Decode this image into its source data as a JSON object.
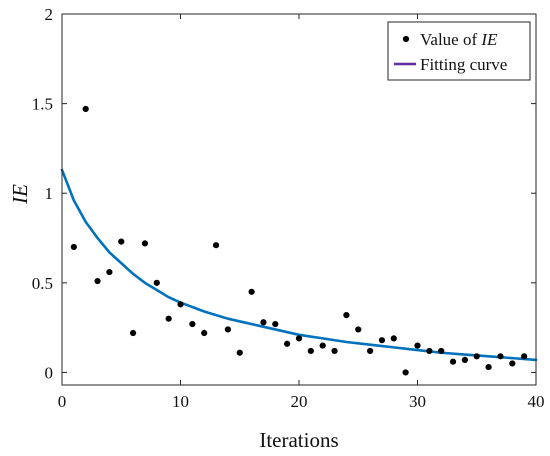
{
  "chart_data": {
    "type": "scatter",
    "xlabel": "Iterations",
    "ylabel": "IE",
    "xlim": [
      0,
      40
    ],
    "ylim": [
      -0.07,
      2
    ],
    "xticks": [
      0,
      10,
      20,
      30,
      40
    ],
    "yticks": [
      0,
      0.5,
      1,
      1.5,
      2
    ],
    "grid": false,
    "legend_position": "top-right",
    "series": [
      {
        "name": "Value of IE",
        "type": "scatter",
        "color": "#000000",
        "x": [
          1,
          2,
          3,
          4,
          5,
          6,
          7,
          8,
          9,
          10,
          11,
          12,
          13,
          14,
          15,
          16,
          17,
          18,
          19,
          20,
          21,
          22,
          23,
          24,
          25,
          26,
          27,
          28,
          29,
          30,
          31,
          32,
          33,
          34,
          35,
          36,
          37,
          38,
          39
        ],
        "y": [
          0.7,
          1.47,
          0.51,
          0.56,
          0.73,
          0.22,
          0.72,
          0.5,
          0.3,
          0.38,
          0.27,
          0.22,
          0.71,
          0.24,
          0.11,
          0.45,
          0.28,
          0.27,
          0.16,
          0.19,
          0.12,
          0.15,
          0.12,
          0.32,
          0.24,
          0.12,
          0.18,
          0.19,
          0.0,
          0.15,
          0.12,
          0.12,
          0.06,
          0.07,
          0.09,
          0.03,
          0.09,
          0.05,
          0.09
        ]
      },
      {
        "name": "Fitting curve",
        "type": "line",
        "color": "#0072BD",
        "x": [
          0,
          1,
          2,
          3,
          4,
          5,
          6,
          7,
          8,
          9,
          10,
          12,
          14,
          16,
          18,
          20,
          22,
          24,
          26,
          28,
          30,
          32,
          34,
          36,
          38,
          40
        ],
        "y": [
          1.13,
          0.96,
          0.84,
          0.75,
          0.67,
          0.61,
          0.55,
          0.5,
          0.46,
          0.42,
          0.39,
          0.34,
          0.3,
          0.27,
          0.24,
          0.21,
          0.19,
          0.17,
          0.155,
          0.14,
          0.125,
          0.11,
          0.1,
          0.09,
          0.08,
          0.07
        ]
      }
    ]
  },
  "legend": {
    "scatter_prefix": "Value of ",
    "scatter_emph": "IE",
    "line_label": "Fitting curve",
    "line_color": "#5b2d9e"
  },
  "axes": {
    "xlabel": "Iterations",
    "ylabel": "IE"
  }
}
